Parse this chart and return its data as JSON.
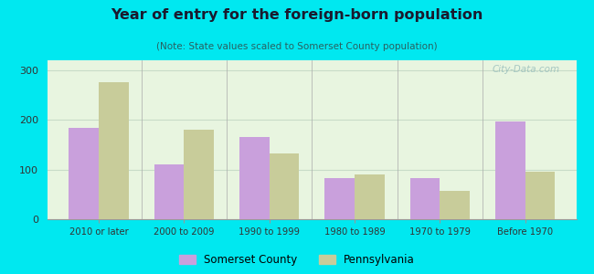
{
  "title": "Year of entry for the foreign-born population",
  "subtitle": "(Note: State values scaled to Somerset County population)",
  "categories": [
    "2010 or later",
    "2000 to 2009",
    "1990 to 1999",
    "1980 to 1989",
    "1970 to 1979",
    "Before 1970"
  ],
  "somerset": [
    183,
    110,
    165,
    82,
    83,
    197
  ],
  "pennsylvania": [
    275,
    180,
    132,
    90,
    57,
    95
  ],
  "somerset_color": "#c9a0dc",
  "pennsylvania_color": "#c8cc9a",
  "background_outer": "#00e8f0",
  "background_inner_top": "#e8f5e0",
  "background_inner_bottom": "#d8edd0",
  "ylim": [
    0,
    320
  ],
  "yticks": [
    0,
    100,
    200,
    300
  ],
  "bar_width": 0.35,
  "legend_labels": [
    "Somerset County",
    "Pennsylvania"
  ],
  "watermark": "City-Data.com",
  "title_color": "#1a1a2e",
  "subtitle_color": "#2a6060",
  "grid_color": "#c8dcc8",
  "tick_label_color": "#333333"
}
